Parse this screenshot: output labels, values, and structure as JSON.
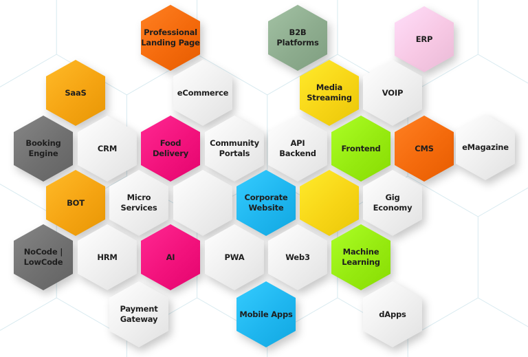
{
  "colors": {
    "orange": "#f46a0c",
    "amber": "#f5a412",
    "gray": "#707070",
    "pink": "#f2127c",
    "sage": "#8dac8e",
    "lightpink": "#f7c8e4",
    "yellow": "#f7d516",
    "lime": "#96ea10",
    "blue": "#1fb6ef",
    "white": "#efefef",
    "grid": "#d6e9ef"
  },
  "tiles": [
    {
      "label": "Professional\nLanding Page",
      "color": "orange"
    },
    {
      "label": "B2B\nPlatforms",
      "color": "sage"
    },
    {
      "label": "ERP",
      "color": "lightpink"
    },
    {
      "label": "SaaS",
      "color": "amber"
    },
    {
      "label": "eCommerce",
      "color": "white"
    },
    {
      "label": "Media\nStreaming",
      "color": "yellow"
    },
    {
      "label": "VOIP",
      "color": "white"
    },
    {
      "label": "Booking\nEngine",
      "color": "gray"
    },
    {
      "label": "CRM",
      "color": "white"
    },
    {
      "label": "Food\nDelivery",
      "color": "pink"
    },
    {
      "label": "Community\nPortals",
      "color": "white"
    },
    {
      "label": "API\nBackend",
      "color": "white"
    },
    {
      "label": "Frontend",
      "color": "lime"
    },
    {
      "label": "CMS",
      "color": "orange"
    },
    {
      "label": "eMagazine",
      "color": "white"
    },
    {
      "label": "BOT",
      "color": "amber"
    },
    {
      "label": "Micro\nServices",
      "color": "white"
    },
    {
      "label": "",
      "color": "white"
    },
    {
      "label": "Corporate\nWebsite",
      "color": "blue"
    },
    {
      "label": "",
      "color": "yellow"
    },
    {
      "label": "Gig\nEconomy",
      "color": "white"
    },
    {
      "label": "NoCode |\nLowCode",
      "color": "gray"
    },
    {
      "label": "HRM",
      "color": "white"
    },
    {
      "label": "AI",
      "color": "pink"
    },
    {
      "label": "PWA",
      "color": "white"
    },
    {
      "label": "Web3",
      "color": "white"
    },
    {
      "label": "Machine\nLearning",
      "color": "lime"
    },
    {
      "label": "Payment\nGateway",
      "color": "white"
    },
    {
      "label": "Mobile Apps",
      "color": "blue"
    },
    {
      "label": "dApps",
      "color": "white"
    }
  ]
}
